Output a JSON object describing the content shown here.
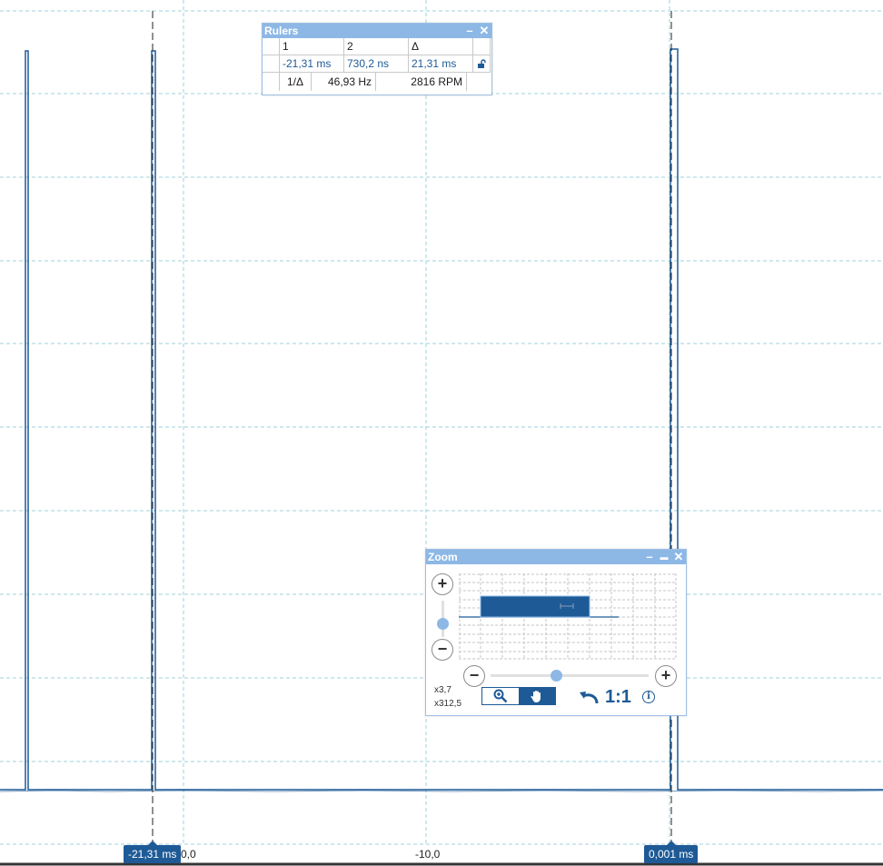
{
  "axis": {
    "tick_labels": [
      "0,0",
      "-10,0"
    ]
  },
  "rulers_window": {
    "title": "Rulers",
    "headers": {
      "col1": "1",
      "col2": "2",
      "delta": "Δ"
    },
    "values": {
      "ruler1": "-21,31 ms",
      "ruler2": "730,2 ns",
      "delta": "21,31 ms"
    },
    "freq_row": {
      "label": "1/Δ",
      "frequency": "46,93 Hz",
      "rpm": "2816 RPM"
    },
    "lock_icon": "unlock-icon"
  },
  "ruler_tags": {
    "left": "-21,31 ms",
    "right": "0,001 ms"
  },
  "zoom_window": {
    "title": "Zoom",
    "vertical_zoom_label": "x3,7",
    "horizontal_zoom_label": "x312,5",
    "one_to_one_label": "1:1",
    "tools": [
      "zoom-tool",
      "pan-tool"
    ]
  },
  "colors": {
    "trace": "#1e5a96",
    "grid": "#9fd0dc",
    "panel_header": "#8db8e6",
    "accent": "#1e5a96"
  }
}
